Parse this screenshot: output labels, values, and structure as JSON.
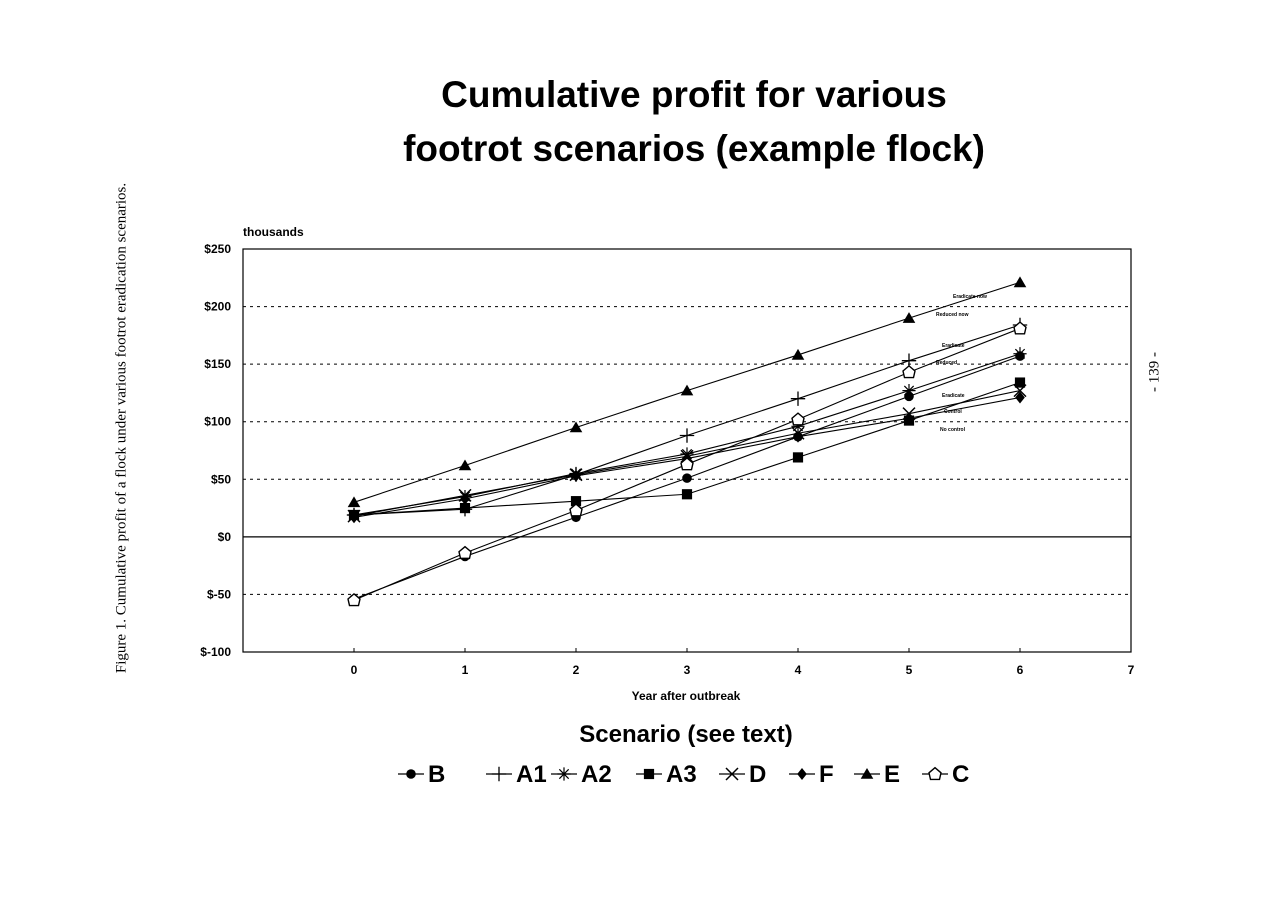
{
  "page": {
    "side_caption": "Figure 1.  Cumulative profit of a flock under various footrot eradication scenarios.",
    "page_number": "- 139 -"
  },
  "chart_data": {
    "type": "line",
    "title_lines": [
      "Cumulative profit for various",
      "footrot scenarios (example flock)"
    ],
    "ylabel": "thousands",
    "xlabel": "Year after outbreak",
    "legend_title": "Scenario (see text)",
    "legend_position": "bottom",
    "x": [
      0,
      1,
      2,
      3,
      4,
      5,
      6
    ],
    "xlim": [
      -1,
      7
    ],
    "x_ticks": [
      "0",
      "1",
      "2",
      "3",
      "4",
      "5",
      "6",
      "7"
    ],
    "ylim": [
      -100,
      250
    ],
    "y_ticks": [
      {
        "value": 250,
        "label": "$250"
      },
      {
        "value": 200,
        "label": "$200"
      },
      {
        "value": 150,
        "label": "$150"
      },
      {
        "value": 100,
        "label": "$100"
      },
      {
        "value": 50,
        "label": "$50"
      },
      {
        "value": 0,
        "label": "$0"
      },
      {
        "value": -50,
        "label": "$-50"
      },
      {
        "value": -100,
        "label": "$-100"
      }
    ],
    "grid": "dashed horizontal at $50 intervals",
    "series": [
      {
        "name": "B",
        "marker": "circle",
        "values": [
          -54,
          -17,
          17,
          51,
          87,
          122,
          157
        ]
      },
      {
        "name": "A1",
        "marker": "plus",
        "values": [
          19,
          24,
          54,
          88,
          120,
          153,
          184
        ]
      },
      {
        "name": "A2",
        "marker": "star",
        "values": [
          19,
          35,
          55,
          72,
          96,
          127,
          159
        ]
      },
      {
        "name": "A3",
        "marker": "square",
        "values": [
          19,
          25,
          31,
          37,
          69,
          101,
          134
        ]
      },
      {
        "name": "D",
        "marker": "x",
        "values": [
          18,
          36,
          54,
          70,
          90,
          107,
          127
        ]
      },
      {
        "name": "F",
        "marker": "diamond",
        "values": [
          17,
          33,
          53,
          68,
          87,
          103,
          121
        ]
      },
      {
        "name": "E",
        "marker": "triangle",
        "values": [
          30,
          62,
          95,
          127,
          158,
          190,
          221
        ]
      },
      {
        "name": "C",
        "marker": "open-pentagon",
        "values": [
          -55,
          -14,
          23,
          63,
          102,
          143,
          181
        ]
      }
    ],
    "annotations": [
      "Eradicate now",
      "Reduced now",
      "Eradicate",
      "Reduced",
      "Eradicate",
      "Control",
      "No control"
    ]
  }
}
